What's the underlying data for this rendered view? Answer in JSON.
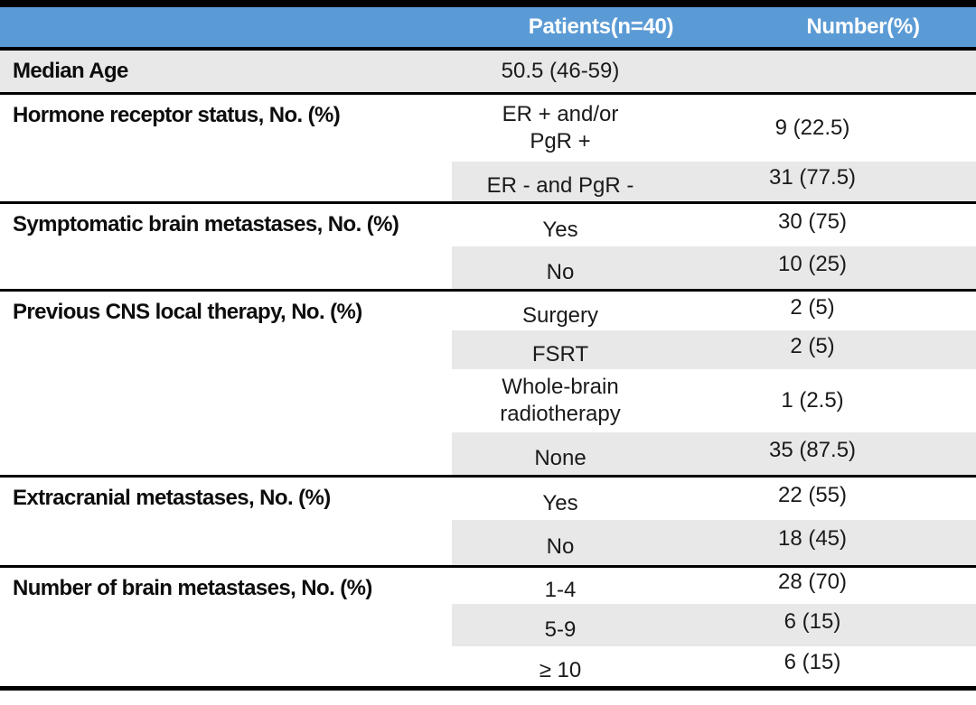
{
  "colors": {
    "header_bg": "#5B9BD5",
    "header_text": "#FFFFFF",
    "row_shade": "#E9E8E8",
    "border": "#000000"
  },
  "header": {
    "patients": "Patients(n=40)",
    "number": "Number(%)"
  },
  "sections": [
    {
      "label": "Median Age",
      "rows": [
        {
          "category": "50.5 (46-59)",
          "value": ""
        }
      ]
    },
    {
      "label": "Hormone receptor status, No. (%)",
      "rows": [
        {
          "category": "ER + and/or\nPgR +",
          "value": "9 (22.5)"
        },
        {
          "category": "ER - and PgR -",
          "value": "31 (77.5)"
        }
      ]
    },
    {
      "label": "Symptomatic brain metastases, No. (%)",
      "rows": [
        {
          "category": "Yes",
          "value": "30 (75)"
        },
        {
          "category": "No",
          "value": "10 (25)"
        }
      ]
    },
    {
      "label": "Previous CNS local therapy, No. (%)",
      "rows": [
        {
          "category": "Surgery",
          "value": "2 (5)"
        },
        {
          "category": "FSRT",
          "value": "2 (5)"
        },
        {
          "category": "Whole-brain\nradiotherapy",
          "value": "1 (2.5)"
        },
        {
          "category": "None",
          "value": "35 (87.5)"
        }
      ]
    },
    {
      "label": "Extracranial metastases, No. (%)",
      "rows": [
        {
          "category": "Yes",
          "value": "22 (55)"
        },
        {
          "category": "No",
          "value": "18 (45)"
        }
      ]
    },
    {
      "label": "Number of brain metastases, No. (%)",
      "rows": [
        {
          "category": "1-4",
          "value": "28 (70)"
        },
        {
          "category": "5-9",
          "value": "6 (15)"
        },
        {
          "category": "≥ 10",
          "value": "6 (15)"
        }
      ]
    }
  ]
}
